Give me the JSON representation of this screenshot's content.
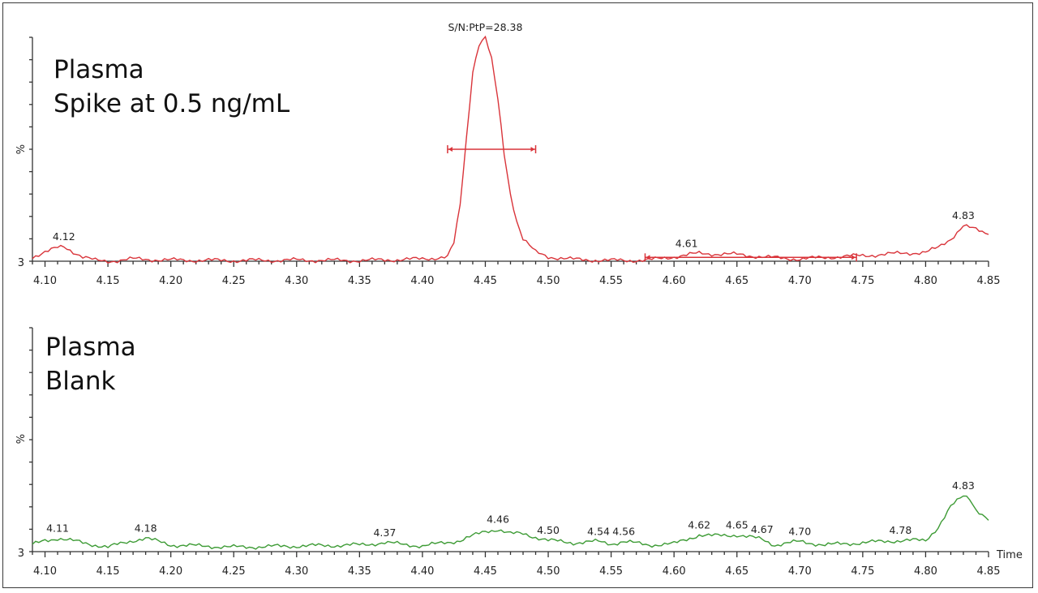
{
  "chart_data": [
    {
      "type": "line",
      "title_lines": [
        "Plasma",
        "Spike at 0.5 ng/mL"
      ],
      "ylabel": "%",
      "y_min_label": "3",
      "xlim": [
        4.09,
        4.85
      ],
      "ylim": [
        0,
        100
      ],
      "x_ticks": [
        "4.10",
        "4.15",
        "4.20",
        "4.25",
        "4.30",
        "4.35",
        "4.40",
        "4.45",
        "4.50",
        "4.55",
        "4.60",
        "4.65",
        "4.70",
        "4.75",
        "4.80",
        "4.85"
      ],
      "color": "#d9343a",
      "series": [
        {
          "x": [
            4.09,
            4.1,
            4.11,
            4.115,
            4.12,
            4.13,
            4.14,
            4.15,
            4.17,
            4.2,
            4.25,
            4.3,
            4.35,
            4.4,
            4.42,
            4.425,
            4.43,
            4.435,
            4.44,
            4.445,
            4.45,
            4.455,
            4.46,
            4.465,
            4.47,
            4.475,
            4.48,
            4.49,
            4.5,
            4.52,
            4.55,
            4.58,
            4.6,
            4.62,
            4.65,
            4.68,
            4.7,
            4.73,
            4.75,
            4.78,
            4.8,
            4.81,
            4.82,
            4.83,
            4.84,
            4.85
          ],
          "y": [
            2,
            4,
            6,
            6.5,
            5,
            2,
            0.3,
            0,
            1,
            0.5,
            0.3,
            0.5,
            0.3,
            1,
            2,
            8,
            25,
            55,
            85,
            97,
            100,
            90,
            72,
            48,
            30,
            18,
            10,
            4,
            2,
            0.8,
            0.3,
            0.5,
            2,
            3.5,
            3,
            1.5,
            1,
            2,
            2.5,
            3.5,
            4,
            6,
            10,
            16,
            14,
            12
          ]
        }
      ],
      "peak_labels": [
        {
          "x": 4.115,
          "y": 6.5,
          "text": "4.12"
        },
        {
          "x": 4.61,
          "y": 3.5,
          "text": "4.61"
        },
        {
          "x": 4.83,
          "y": 16,
          "text": "4.83"
        }
      ],
      "annotation": {
        "x": 4.45,
        "y": 100,
        "text": "S/N:PtP=28.38"
      },
      "width_bars": [
        {
          "x1": 4.42,
          "x2": 4.49,
          "y": 50
        },
        {
          "x1": 4.577,
          "x2": 4.745,
          "y": 1.7
        }
      ]
    },
    {
      "type": "line",
      "title_lines": [
        "Plasma",
        "Blank"
      ],
      "ylabel": "%",
      "y_min_label": "3",
      "xlabel": "Time",
      "xlim": [
        4.09,
        4.85
      ],
      "ylim": [
        0,
        100
      ],
      "x_ticks": [
        "4.10",
        "4.15",
        "4.20",
        "4.25",
        "4.30",
        "4.35",
        "4.40",
        "4.45",
        "4.50",
        "4.55",
        "4.60",
        "4.65",
        "4.70",
        "4.75",
        "4.80",
        "4.85"
      ],
      "color": "#3d9b35",
      "series": [
        {
          "x": [
            4.09,
            4.1,
            4.11,
            4.13,
            4.15,
            4.17,
            4.18,
            4.2,
            4.25,
            4.3,
            4.35,
            4.37,
            4.4,
            4.43,
            4.45,
            4.46,
            4.47,
            4.48,
            4.5,
            4.52,
            4.54,
            4.55,
            4.56,
            4.58,
            4.6,
            4.62,
            4.63,
            4.65,
            4.67,
            4.68,
            4.7,
            4.72,
            4.75,
            4.78,
            4.8,
            4.81,
            4.82,
            4.83,
            4.835,
            4.84,
            4.85
          ],
          "y": [
            3,
            5,
            6,
            4,
            2,
            5,
            6,
            3,
            2,
            2.5,
            3,
            4,
            2.5,
            5,
            9,
            10,
            8,
            8,
            5,
            4,
            4.5,
            3.5,
            4.5,
            3,
            3.5,
            7.5,
            7,
            7.5,
            5.5,
            3,
            4.5,
            3,
            4,
            5,
            5,
            11,
            20,
            25,
            24,
            19,
            14
          ]
        }
      ],
      "peak_labels": [
        {
          "x": 4.11,
          "y": 6,
          "text": "4.11"
        },
        {
          "x": 4.18,
          "y": 6,
          "text": "4.18"
        },
        {
          "x": 4.37,
          "y": 4,
          "text": "4.37"
        },
        {
          "x": 4.46,
          "y": 10,
          "text": "4.46"
        },
        {
          "x": 4.5,
          "y": 5,
          "text": "4.50"
        },
        {
          "x": 4.54,
          "y": 4.5,
          "text": "4.54"
        },
        {
          "x": 4.56,
          "y": 4.5,
          "text": "4.56"
        },
        {
          "x": 4.62,
          "y": 7.5,
          "text": "4.62"
        },
        {
          "x": 4.65,
          "y": 7.5,
          "text": "4.65"
        },
        {
          "x": 4.67,
          "y": 5.5,
          "text": "4.67"
        },
        {
          "x": 4.7,
          "y": 4.5,
          "text": "4.70"
        },
        {
          "x": 4.78,
          "y": 5,
          "text": "4.78"
        },
        {
          "x": 4.83,
          "y": 25,
          "text": "4.83"
        }
      ]
    }
  ]
}
